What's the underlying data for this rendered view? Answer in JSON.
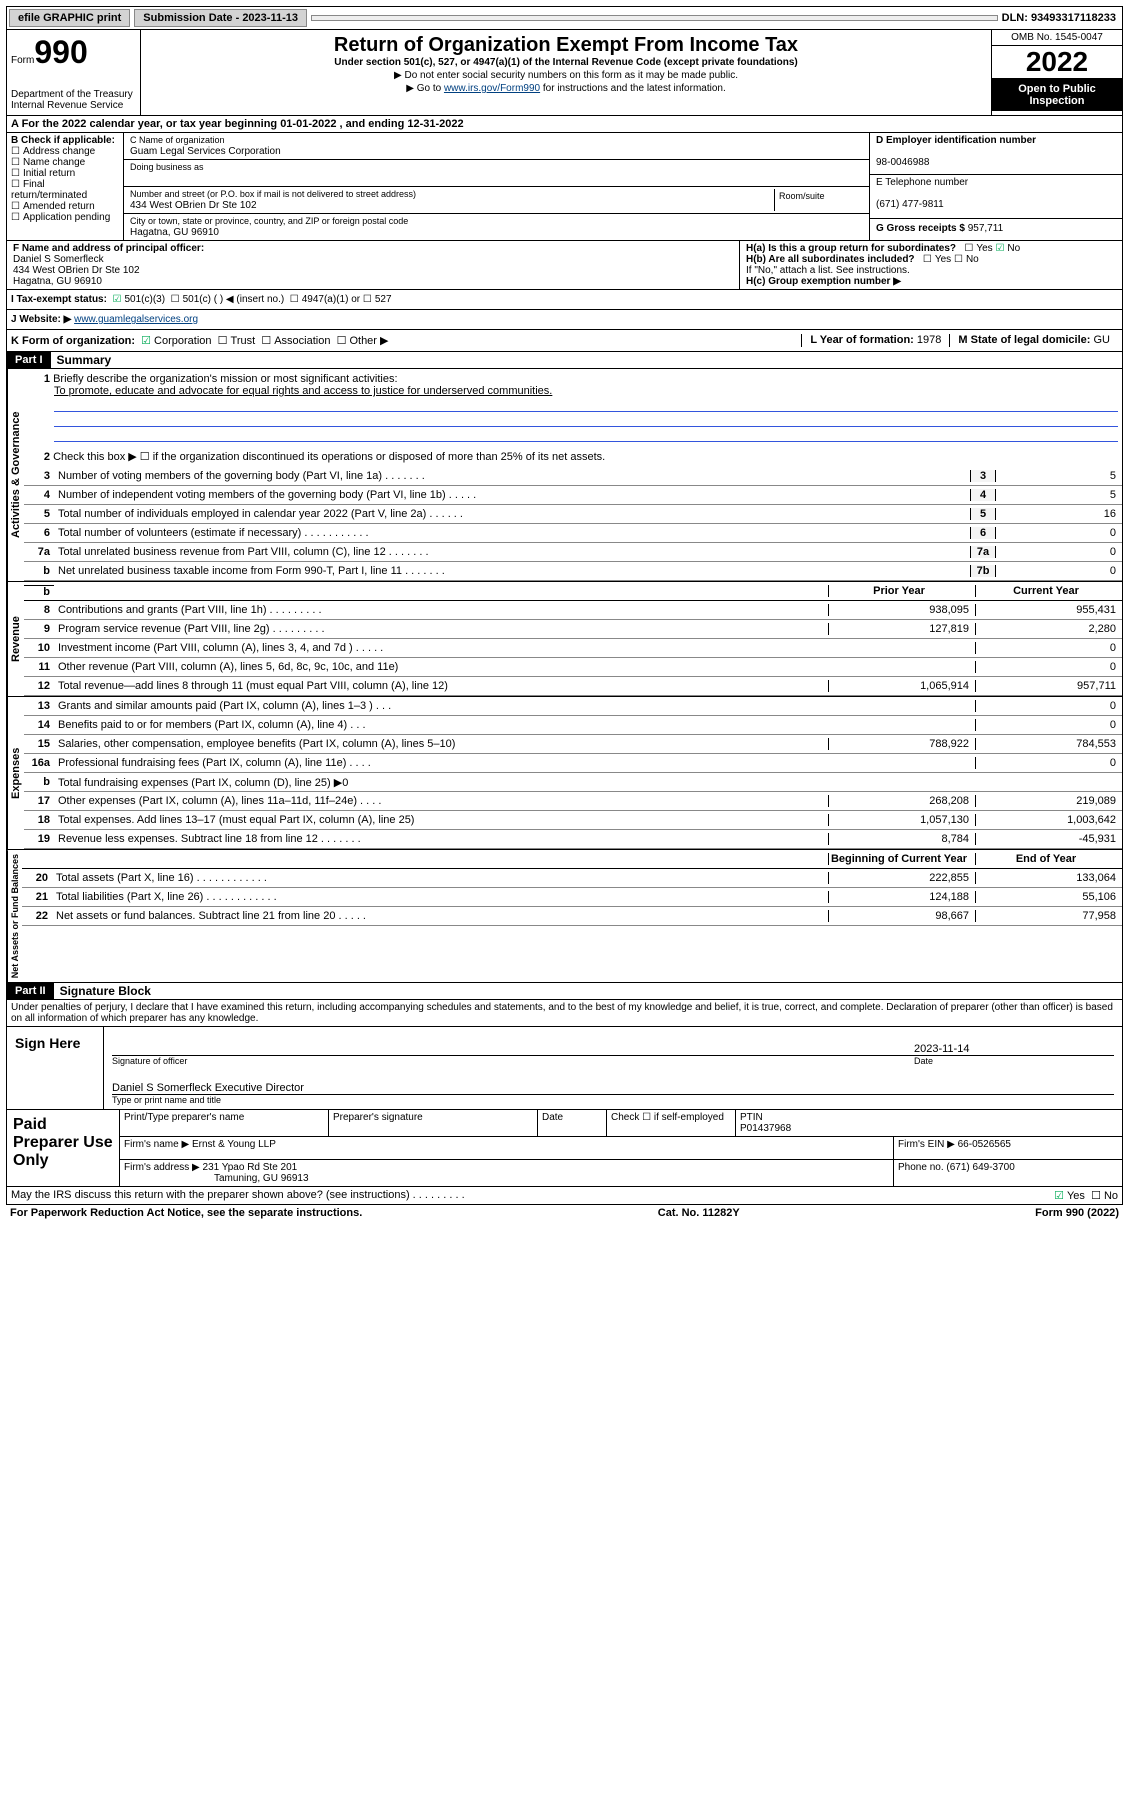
{
  "topbar": {
    "efile": "efile GRAPHIC print",
    "submission": "Submission Date - 2023-11-13",
    "dln": "DLN: 93493317118233"
  },
  "header": {
    "form_label": "Form",
    "form_number": "990",
    "dept": "Department of the Treasury",
    "irs": "Internal Revenue Service",
    "title": "Return of Organization Exempt From Income Tax",
    "subtitle": "Under section 501(c), 527, or 4947(a)(1) of the Internal Revenue Code (except private foundations)",
    "note1": "▶ Do not enter social security numbers on this form as it may be made public.",
    "note2_pre": "▶ Go to ",
    "note2_link": "www.irs.gov/Form990",
    "note2_post": " for instructions and the latest information.",
    "omb": "OMB No. 1545-0047",
    "year": "2022",
    "open": "Open to Public Inspection"
  },
  "rowA": "A For the 2022 calendar year, or tax year beginning 01-01-2022   , and ending 12-31-2022",
  "colB": {
    "title": "B Check if applicable:",
    "opts": [
      "Address change",
      "Name change",
      "Initial return",
      "Final return/terminated",
      "Amended return",
      "Application pending"
    ]
  },
  "colC": {
    "name_label": "C Name of organization",
    "name": "Guam Legal Services Corporation",
    "dba_label": "Doing business as",
    "addr_label": "Number and street (or P.O. box if mail is not delivered to street address)",
    "room_label": "Room/suite",
    "addr": "434 West OBrien Dr Ste 102",
    "city_label": "City or town, state or province, country, and ZIP or foreign postal code",
    "city": "Hagatna, GU  96910"
  },
  "colD": {
    "ein_label": "D Employer identification number",
    "ein": "98-0046988",
    "tel_label": "E Telephone number",
    "tel": "(671) 477-9811",
    "gross_label": "G Gross receipts $",
    "gross": "957,711"
  },
  "rowF": {
    "label": "F  Name and address of principal officer:",
    "name": "Daniel S Somerfleck",
    "addr1": "434 West OBrien Dr Ste 102",
    "addr2": "Hagatna, GU  96910"
  },
  "rowH": {
    "ha": "H(a)  Is this a group return for subordinates?",
    "hb": "H(b)  Are all subordinates included?",
    "hb_note": "If \"No,\" attach a list. See instructions.",
    "hc": "H(c)  Group exemption number ▶",
    "yes": "Yes",
    "no": "No"
  },
  "rowI": {
    "label": "I    Tax-exempt status:",
    "o1": "501(c)(3)",
    "o2": "501(c) (    ) ◀ (insert no.)",
    "o3": "4947(a)(1) or",
    "o4": "527"
  },
  "rowJ": {
    "label": "J   Website: ▶",
    "url": "www.guamlegalservices.org"
  },
  "rowK": {
    "label": "K Form of organization:",
    "corp": "Corporation",
    "trust": "Trust",
    "assoc": "Association",
    "other": "Other ▶"
  },
  "rowL": {
    "label": "L Year of formation:",
    "val": "1978"
  },
  "rowM": {
    "label": "M State of legal domicile:",
    "val": "GU"
  },
  "part1": {
    "hdr": "Part I",
    "title": "Summary",
    "q1": "Briefly describe the organization's mission or most significant activities:",
    "mission": "To promote, educate and advocate for equal rights and access to justice for underserved communities.",
    "q2": "Check this box ▶ ☐  if the organization discontinued its operations or disposed of more than 25% of its net assets.",
    "gov_label": "Activities & Governance",
    "rev_label": "Revenue",
    "exp_label": "Expenses",
    "net_label": "Net Assets or Fund Balances",
    "col_prior": "Prior Year",
    "col_current": "Current Year",
    "col_begin": "Beginning of Current Year",
    "col_end": "End of Year",
    "rows_gov": [
      {
        "n": "3",
        "l": "Number of voting members of the governing body (Part VI, line 1a)   .    .    .    .    .    .    .",
        "b": "3",
        "v": "5"
      },
      {
        "n": "4",
        "l": "Number of independent voting members of the governing body (Part VI, line 1b)   .    .    .    .    .",
        "b": "4",
        "v": "5"
      },
      {
        "n": "5",
        "l": "Total number of individuals employed in calendar year 2022 (Part V, line 2a)   .    .    .    .    .    .",
        "b": "5",
        "v": "16"
      },
      {
        "n": "6",
        "l": "Total number of volunteers (estimate if necessary)   .    .    .    .    .    .    .    .    .    .    .",
        "b": "6",
        "v": "0"
      },
      {
        "n": "7a",
        "l": "Total unrelated business revenue from Part VIII, column (C), line 12   .    .    .    .    .    .    .",
        "b": "7a",
        "v": "0"
      },
      {
        "n": "b",
        "l": "Net unrelated business taxable income from Form 990-T, Part I, line 11   .    .    .    .    .    .    .",
        "b": "7b",
        "v": "0"
      }
    ],
    "rows_rev": [
      {
        "n": "8",
        "l": "Contributions and grants (Part VIII, line 1h)   .    .    .    .    .    .    .    .    .",
        "p": "938,095",
        "c": "955,431"
      },
      {
        "n": "9",
        "l": "Program service revenue (Part VIII, line 2g)   .    .    .    .    .    .    .    .    .",
        "p": "127,819",
        "c": "2,280"
      },
      {
        "n": "10",
        "l": "Investment income (Part VIII, column (A), lines 3, 4, and 7d )   .    .    .    .    .",
        "p": "",
        "c": "0"
      },
      {
        "n": "11",
        "l": "Other revenue (Part VIII, column (A), lines 5, 6d, 8c, 9c, 10c, and 11e)",
        "p": "",
        "c": "0"
      },
      {
        "n": "12",
        "l": "Total revenue—add lines 8 through 11 (must equal Part VIII, column (A), line 12)",
        "p": "1,065,914",
        "c": "957,711"
      }
    ],
    "rows_exp": [
      {
        "n": "13",
        "l": "Grants and similar amounts paid (Part IX, column (A), lines 1–3 )   .    .    .",
        "p": "",
        "c": "0"
      },
      {
        "n": "14",
        "l": "Benefits paid to or for members (Part IX, column (A), line 4)   .    .    .",
        "p": "",
        "c": "0"
      },
      {
        "n": "15",
        "l": "Salaries, other compensation, employee benefits (Part IX, column (A), lines 5–10)",
        "p": "788,922",
        "c": "784,553"
      },
      {
        "n": "16a",
        "l": "Professional fundraising fees (Part IX, column (A), line 11e)   .    .    .    .",
        "p": "",
        "c": "0"
      },
      {
        "n": "b",
        "l": "Total fundraising expenses (Part IX, column (D), line 25) ▶0",
        "p": "shade",
        "c": "shade"
      },
      {
        "n": "17",
        "l": "Other expenses (Part IX, column (A), lines 11a–11d, 11f–24e)   .    .    .    .",
        "p": "268,208",
        "c": "219,089"
      },
      {
        "n": "18",
        "l": "Total expenses. Add lines 13–17 (must equal Part IX, column (A), line 25)",
        "p": "1,057,130",
        "c": "1,003,642"
      },
      {
        "n": "19",
        "l": "Revenue less expenses. Subtract line 18 from line 12   .    .    .    .    .    .    .",
        "p": "8,784",
        "c": "-45,931"
      }
    ],
    "rows_net": [
      {
        "n": "20",
        "l": "Total assets (Part X, line 16)   .    .    .    .    .    .    .    .    .    .    .    .",
        "p": "222,855",
        "c": "133,064"
      },
      {
        "n": "21",
        "l": "Total liabilities (Part X, line 26)   .    .    .    .    .    .    .    .    .    .    .    .",
        "p": "124,188",
        "c": "55,106"
      },
      {
        "n": "22",
        "l": "Net assets or fund balances. Subtract line 21 from line 20   .    .    .    .    .",
        "p": "98,667",
        "c": "77,958"
      }
    ]
  },
  "part2": {
    "hdr": "Part II",
    "title": "Signature Block",
    "penalty": "Under penalties of perjury, I declare that I have examined this return, including accompanying schedules and statements, and to the best of my knowledge and belief, it is true, correct, and complete. Declaration of preparer (other than officer) is based on all information of which preparer has any knowledge.",
    "sign_here": "Sign Here",
    "sig_officer": "Signature of officer",
    "date": "Date",
    "sig_date": "2023-11-14",
    "officer_name": "Daniel S Somerfleck  Executive Director",
    "type_name": "Type or print name and title",
    "paid": "Paid Preparer Use Only",
    "prep_name_label": "Print/Type preparer's name",
    "prep_sig_label": "Preparer's signature",
    "date_label": "Date",
    "check_se": "Check ☐ if self-employed",
    "ptin_label": "PTIN",
    "ptin": "P01437968",
    "firm_name_label": "Firm's name     ▶",
    "firm_name": "Ernst & Young LLP",
    "firm_ein_label": "Firm's EIN ▶",
    "firm_ein": "66-0526565",
    "firm_addr_label": "Firm's address ▶",
    "firm_addr": "231 Ypao Rd Ste 201",
    "firm_city": "Tamuning, GU  96913",
    "phone_label": "Phone no.",
    "phone": "(671) 649-3700",
    "may_irs": "May the IRS discuss this return with the preparer shown above? (see instructions)   .    .    .    .    .    .    .    .    ."
  },
  "footer": {
    "paperwork": "For Paperwork Reduction Act Notice, see the separate instructions.",
    "catno": "Cat. No. 11282Y",
    "formno": "Form 990 (2022)"
  },
  "colors": {
    "link": "#004080",
    "check_green": "#0a5"
  }
}
